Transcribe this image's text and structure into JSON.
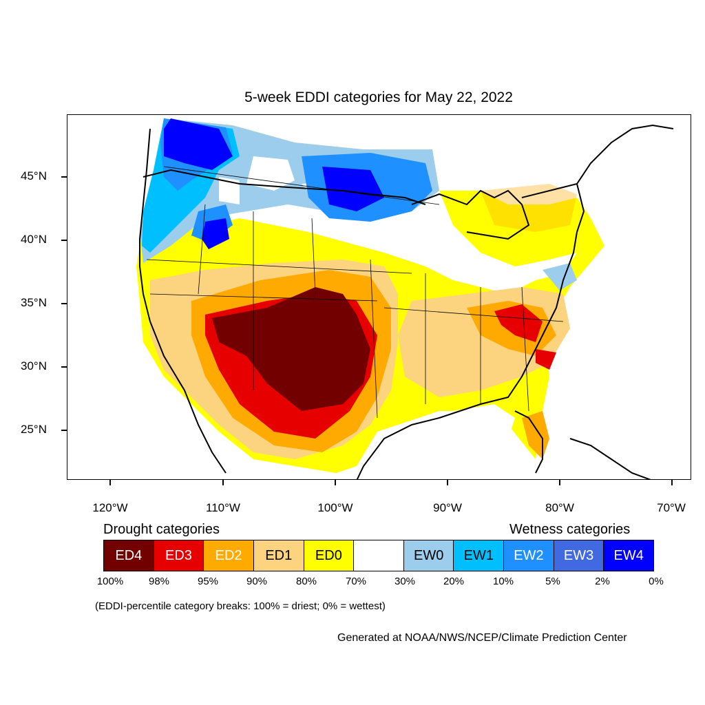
{
  "title": "5-week EDDI categories for May 22, 2022",
  "latitude_labels": [
    "45°N",
    "40°N",
    "35°N",
    "30°N",
    "25°N"
  ],
  "longitude_labels": [
    "120°W",
    "110°W",
    "100°W",
    "90°W",
    "80°W",
    "70°W"
  ],
  "drought_heading": "Drought categories",
  "wetness_heading": "Wetness categories",
  "legend": [
    {
      "label": "ED4",
      "color": "#730000",
      "text_color": "#ffffff"
    },
    {
      "label": "ED3",
      "color": "#e60000",
      "text_color": "#ffffff"
    },
    {
      "label": "ED2",
      "color": "#ffaa00",
      "text_color": "#ffffff"
    },
    {
      "label": "ED1",
      "color": "#fcd37f",
      "text_color": "#000000"
    },
    {
      "label": "ED0",
      "color": "#ffff00",
      "text_color": "#000000"
    },
    {
      "label": "",
      "color": "#ffffff",
      "text_color": "#000000"
    },
    {
      "label": "EW0",
      "color": "#9ccded",
      "text_color": "#000000"
    },
    {
      "label": "EW1",
      "color": "#00bfff",
      "text_color": "#000000"
    },
    {
      "label": "EW2",
      "color": "#1e90ff",
      "text_color": "#ffffff"
    },
    {
      "label": "EW3",
      "color": "#4169e1",
      "text_color": "#ffffff"
    },
    {
      "label": "EW4",
      "color": "#0000ff",
      "text_color": "#ffffff"
    }
  ],
  "percentile_breaks": [
    "100%",
    "98%",
    "95%",
    "90%",
    "80%",
    "70%",
    "30%",
    "20%",
    "10%",
    "5%",
    "2%",
    "0%"
  ],
  "footnote": "(EDDI-percentile category breaks: 100% = driest; 0% = wettest)",
  "credit": "Generated at NOAA/NWS/NCEP/Climate Prediction Center"
}
